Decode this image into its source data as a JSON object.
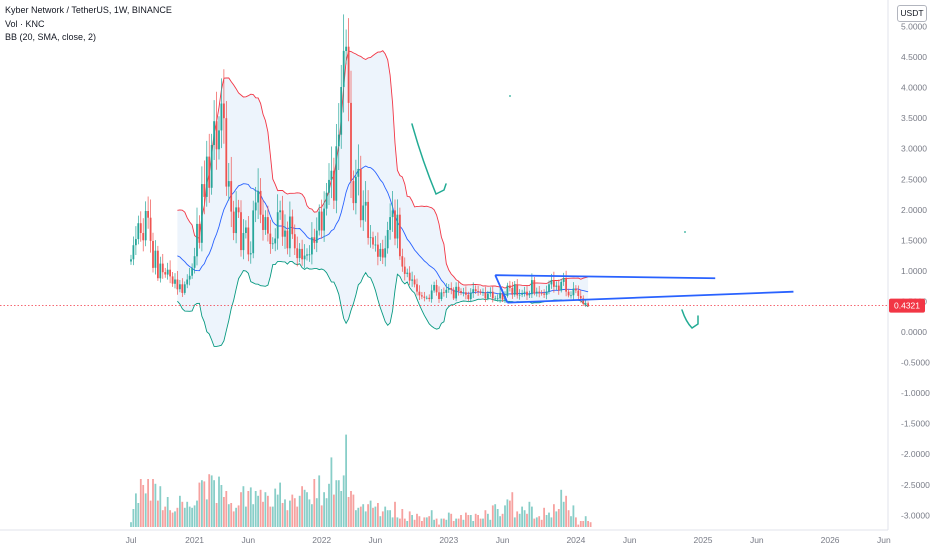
{
  "header": {
    "symbol_line": "Kyber Network / TetherUS, 1W, BINANCE",
    "volume_line": "Vol · KNC",
    "bb_line": "BB (20, SMA, close, 2)",
    "currency": "USDT"
  },
  "colors": {
    "up": "#26a69a",
    "down": "#ef5350",
    "bb_upper": "#f23645",
    "bb_lower": "#089981",
    "bb_basis": "#2962ff",
    "bb_fill": "#e9f1fb",
    "price_badge": "#f23645",
    "trendline": "#2962ff",
    "annotation": "#22ab94",
    "axis_text": "#787b86"
  },
  "price_label": "0.4321",
  "chart_data": {
    "type": "candlestick",
    "y_ticks": [
      "5.0000",
      "4.5000",
      "4.0000",
      "3.5000",
      "3.0000",
      "2.5000",
      "2.0000",
      "1.5000",
      "1.0000",
      "0.5000",
      "0.0000",
      "-0.5000",
      "-1.0000",
      "-1.5000",
      "-2.0000",
      "-2.5000",
      "-3.0000"
    ],
    "y_tick_values": [
      5,
      4.5,
      4,
      3.5,
      3,
      2.5,
      2,
      1.5,
      1,
      0.5,
      0,
      -0.5,
      -1,
      -1.5,
      -2,
      -2.5,
      -3
    ],
    "ylim": [
      -3.3,
      5.4
    ],
    "x_labels": [
      "Jul",
      "2021",
      "Jun",
      "2022",
      "Jun",
      "2023",
      "Jun",
      "2024",
      "Jun",
      "2025",
      "Jun",
      "2026",
      "Jun"
    ],
    "x_label_weeks": [
      0,
      26,
      48,
      78,
      100,
      130,
      152,
      182,
      204,
      234,
      256,
      286,
      308
    ],
    "weeks_total": 325,
    "last_price": 0.4321,
    "price_close": [
      1.19,
      1.42,
      1.52,
      1.78,
      1.62,
      1.5,
      1.98,
      1.87,
      1.49,
      1.05,
      1.33,
      0.88,
      1.12,
      0.98,
      0.94,
      1.02,
      0.91,
      0.79,
      0.86,
      0.7,
      0.78,
      0.64,
      0.78,
      0.86,
      0.92,
      1.05,
      1.24,
      1.77,
      1.46,
      2.42,
      2.21,
      2.87,
      2.36,
      3.06,
      3.45,
      2.99,
      3.3,
      3.74,
      3.5,
      2.38,
      2.47,
      1.97,
      1.62,
      2.04,
      1.96,
      1.34,
      1.62,
      1.71,
      1.27,
      1.29,
      1.99,
      2.12,
      2.31,
      1.92,
      1.67,
      1.88,
      1.61,
      1.44,
      1.45,
      1.53,
      1.96,
      1.99,
      1.56,
      1.66,
      1.37,
      1.89,
      1.6,
      1.37,
      1.21,
      1.36,
      1.19,
      1.25,
      1.27,
      1.27,
      1.55,
      1.46,
      1.66,
      1.97,
      1.66,
      2.02,
      2.28,
      2.49,
      2.64,
      2.15,
      3.04,
      3.23,
      4.01,
      4.6,
      4.67,
      3.75,
      2.47,
      2.11,
      2.54,
      2.67,
      1.83,
      2.07,
      2.13,
      1.54,
      1.55,
      1.43,
      1.43,
      1.23,
      1.36,
      1.22,
      1.37,
      1.67,
      1.88,
      1.99,
      1.53,
      1.92,
      1.24,
      1.07,
      0.95,
      0.97,
      0.84,
      0.86,
      0.78,
      0.66,
      0.6,
      0.58,
      0.56,
      0.56,
      0.54,
      0.68,
      0.77,
      0.65,
      0.54,
      0.65,
      0.64,
      0.69,
      0.72,
      0.69,
      0.55,
      0.74,
      0.67,
      0.64,
      0.65,
      0.61,
      0.54,
      0.64,
      0.7,
      0.67,
      0.66,
      0.64,
      0.65,
      0.55,
      0.63,
      0.66,
      0.55,
      0.55,
      0.55,
      0.64,
      0.53,
      0.59,
      0.76,
      0.72,
      0.61,
      0.78,
      0.6,
      0.61,
      0.64,
      0.66,
      0.6,
      0.62,
      0.85,
      0.63,
      0.66,
      0.64,
      0.63,
      0.61,
      0.66,
      0.78,
      0.85,
      0.74,
      0.76,
      0.68,
      0.82,
      0.88,
      0.66,
      0.6,
      0.6,
      0.71,
      0.68,
      0.59,
      0.55,
      0.46,
      0.47,
      0.43
    ],
    "volume": [
      0.04,
      0.15,
      0.28,
      0.2,
      0.4,
      0.35,
      0.28,
      0.4,
      0.22,
      0.4,
      0.36,
      0.22,
      0.34,
      0.14,
      0.17,
      0.25,
      0.14,
      0.12,
      0.13,
      0.16,
      0.26,
      0.21,
      0.16,
      0.21,
      0.17,
      0.16,
      0.18,
      0.22,
      0.37,
      0.39,
      0.38,
      0.23,
      0.44,
      0.43,
      0.39,
      0.2,
      0.42,
      0.35,
      0.25,
      0.3,
      0.19,
      0.2,
      0.13,
      0.16,
      0.18,
      0.29,
      0.34,
      0.17,
      0.3,
      0.33,
      0.19,
      0.3,
      0.26,
      0.31,
      0.21,
      0.29,
      0.26,
      0.17,
      0.17,
      0.32,
      0.27,
      0.37,
      0.2,
      0.23,
      0.14,
      0.22,
      0.27,
      0.24,
      0.17,
      0.26,
      0.34,
      0.31,
      0.29,
      0.23,
      0.19,
      0.4,
      0.24,
      0.43,
      0.18,
      0.29,
      0.24,
      0.36,
      0.58,
      0.27,
      0.39,
      0.39,
      0.3,
      0.43,
      0.77,
      0.25,
      0.3,
      0.27,
      0.14,
      0.16,
      0.17,
      0.19,
      0.13,
      0.19,
      0.22,
      0.16,
      0.17,
      0.2,
      0.09,
      0.13,
      0.17,
      0.14,
      0.14,
      0.08,
      0.21,
      0.08,
      0.07,
      0.15,
      0.07,
      0.05,
      0.13,
      0.1,
      0.06,
      0.11,
      0.09,
      0.05,
      0.08,
      0.08,
      0.09,
      0.14,
      0.06,
      0.07,
      0.02,
      0.07,
      0.07,
      0.06,
      0.12,
      0.11,
      0.05,
      0.07,
      0.07,
      0.1,
      0.06,
      0.12,
      0.1,
      0.1,
      0.05,
      0.11,
      0.1,
      0.07,
      0.07,
      0.14,
      0.11,
      0.06,
      0.18,
      0.19,
      0.15,
      0.09,
      0.11,
      0.18,
      0.23,
      0.22,
      0.29,
      0.08,
      0.13,
      0.11,
      0.17,
      0.14,
      0.11,
      0.21,
      0.17,
      0.07,
      0.08,
      0.09,
      0.06,
      0.16,
      0.1,
      0.12,
      0.08,
      0.19,
      0.13,
      0.15,
      0.31,
      0.21,
      0.26,
      0.14,
      0.09,
      0.18,
      0.08,
      0.02,
      0.05,
      0.05,
      0.09,
      0.05,
      0.04
    ],
    "grid": false,
    "trendlines": [
      {
        "p1": {
          "week": 149,
          "price": 0.93
        },
        "p2": {
          "week": 239,
          "price": 0.88
        }
      },
      {
        "p1": {
          "week": 154,
          "price": 0.48
        },
        "p2": {
          "week": 271,
          "price": 0.66
        }
      },
      {
        "p1": {
          "week": 149,
          "price": 0.93
        },
        "p2": {
          "week": 154,
          "price": 0.48
        }
      }
    ]
  }
}
